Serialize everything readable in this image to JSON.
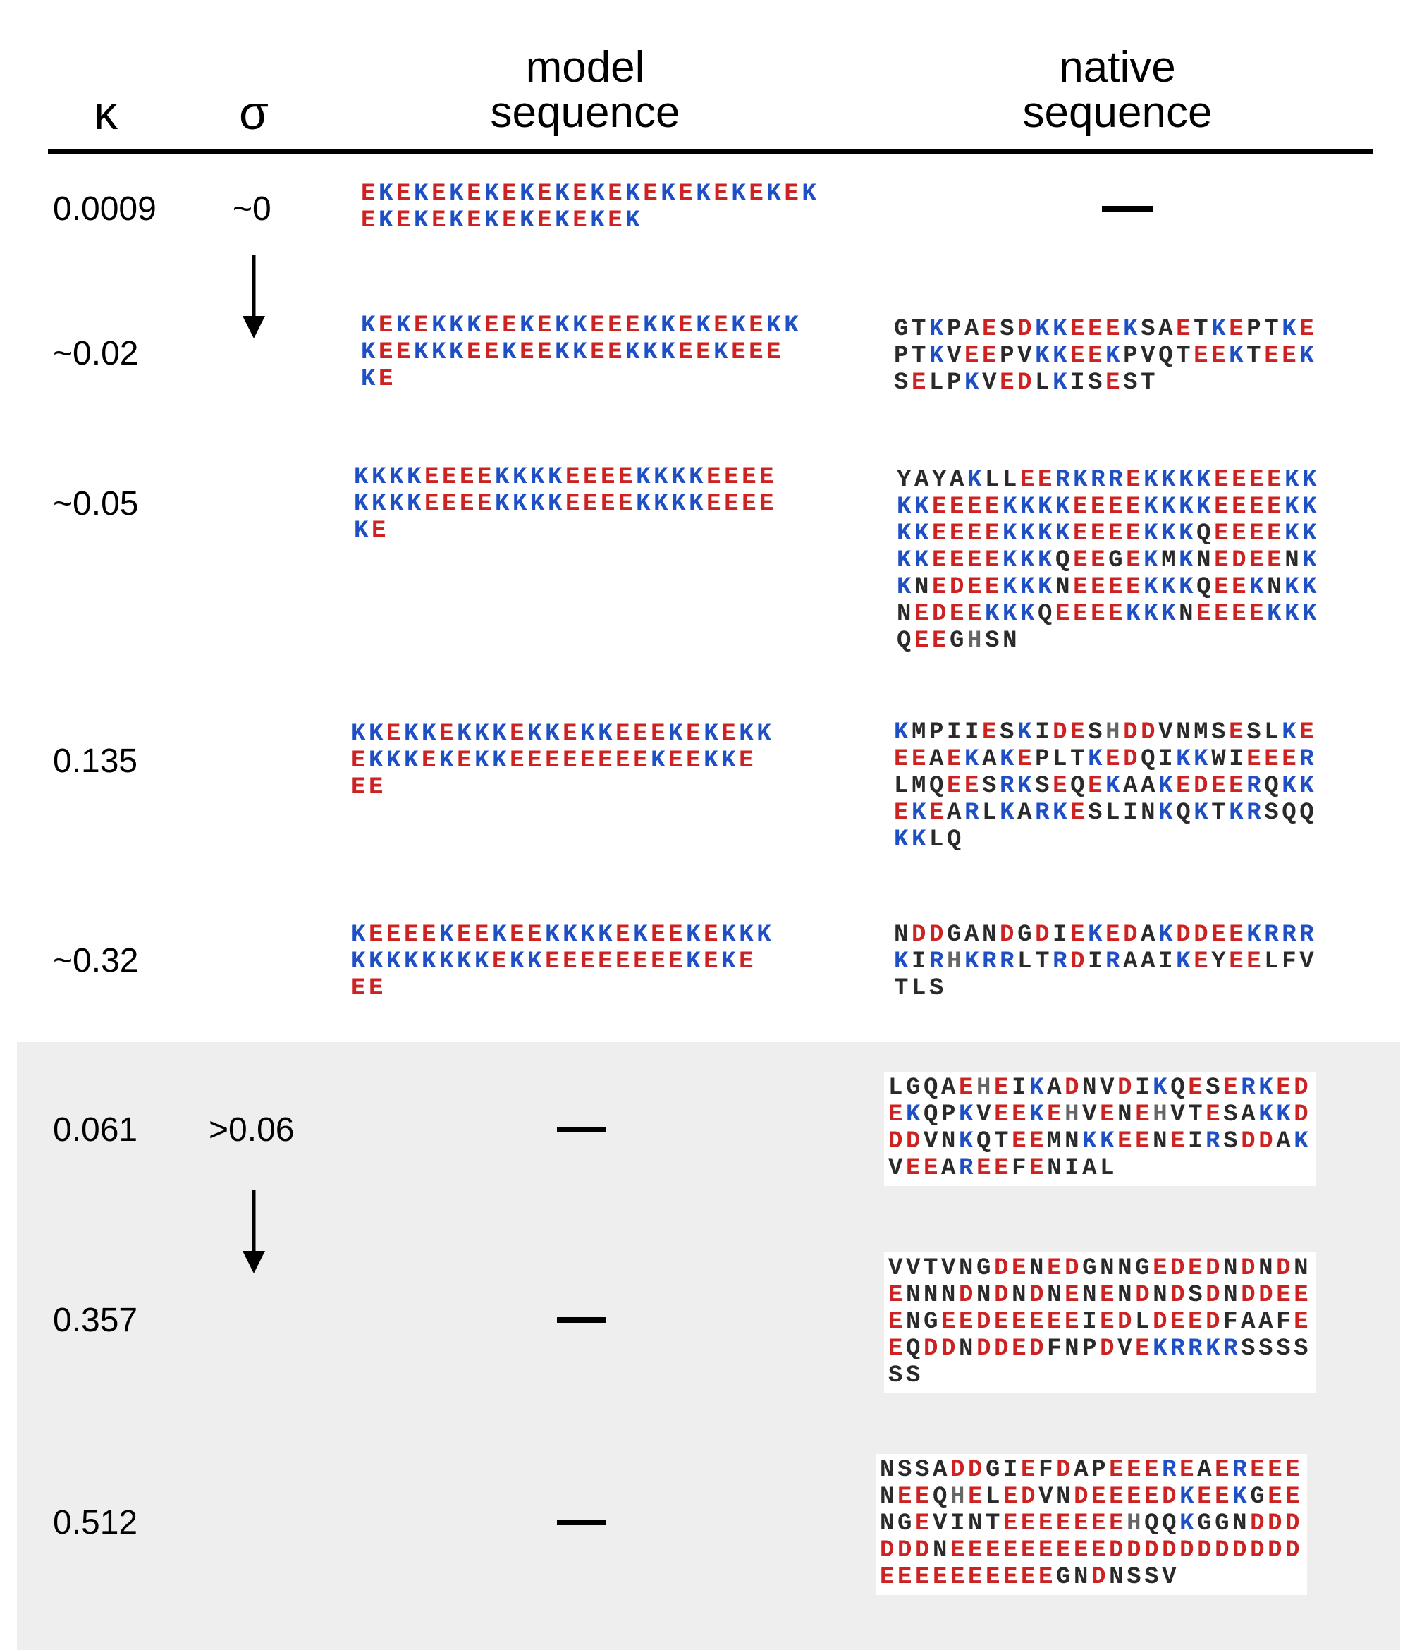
{
  "headers": {
    "kappa": "κ",
    "sigma": "σ",
    "model_line1": "model",
    "model_line2": "sequence",
    "native_line1": "native",
    "native_line2": "sequence"
  },
  "colors": {
    "acidic": "#cc2222",
    "basic": "#1f4fc4",
    "neutral": "#2a2a2a",
    "histidine": "#666666",
    "shaded_background": "#eeeeee"
  },
  "rows": [
    {
      "kappa": "0.0009",
      "sigma": "~0",
      "model": [
        "EKEKEKEKEKEKEKEKEKEKEKEKEK",
        "EKEKEKEKEKEKEKEK"
      ],
      "native": null
    },
    {
      "kappa": "~0.02",
      "sigma": "",
      "model": [
        "KEKEKKKEEKEKKEEEKKEKEKEKK",
        "KEEKKKEEKEEKKEEKKKEEKEEE",
        "KE"
      ],
      "native": [
        "GTKPAESDKKEEEKSAETKEPTKE",
        "PTKVEEPVKKEEKPVQTEEKTEEK",
        "SELPKVEDLKISEST"
      ]
    },
    {
      "kappa": "~0.05",
      "sigma": "",
      "model": [
        "KKKKEEEEKKKKEEEEKKKKEEEE",
        "KKKKEEEEKKKKEEEEKKKKEEEE",
        "KE"
      ],
      "native": [
        "YAYAKLLEERKRREKKKKEEEEKK",
        "KKEEEEKKKKEEEEKKKKEEEEKK",
        "KKEEEEKKKKEEEEKKKQEEEEKK",
        "KKEEEEKKKQEEGEKMKNEDEENK",
        "KNEDEEKKKNEEEEKKKQEEKNKK",
        "NEDEEKKKQEEEEKKKNEEEEKKK",
        "QEEGHSN"
      ]
    },
    {
      "kappa": "0.135",
      "sigma": "",
      "model": [
        "KKEKKEKKKEKKEKKEEEKEKEKK",
        "EKKKEKEKKEEEEEEEEKEEKKE",
        "EE"
      ],
      "native": [
        "KMPIIESKIDESHDDVNMSESLKE",
        "EEAEKAKEPLTKEDQIKKWIEEER",
        "LMQEESRKSEQEKAAKEDEERQKK",
        "EKEARLKARKESLINKQKTKRSQQ",
        "KKLQ"
      ]
    },
    {
      "kappa": "~0.32",
      "sigma": "",
      "model": [
        "KEEEEKEEKEEKKKKEKEEKEKKK",
        "KKKKKKKKEKKEEEEEEEEKEKE",
        "EE"
      ],
      "native": [
        "NDDGANDGDIEKEDAKDDEEKRRR",
        "KIRHKRRLTRDIRAAIKEYEELFV",
        "TLS"
      ]
    },
    {
      "kappa": "0.061",
      "sigma": ">0.06",
      "model": null,
      "native": [
        "LGQAEHEIKADNVDIKQESERKED",
        "EKQPKVEEKEHVENEHVTESAKKD",
        "DDVNKQTEEMNKKEENEIRSDDAK",
        "VEEAREEFENIAL"
      ]
    },
    {
      "kappa": "0.357",
      "sigma": "",
      "model": null,
      "native": [
        "VVTVNGDENEDGNNGEDEDNDNDN",
        "ENNNDNDNDNENENDNDSDNDDEE",
        "ENGEEDEEEEEIEDLDEEDFAAFE",
        "EQDDNDDEDFNPDVEKRRKRSSSS",
        "SS"
      ]
    },
    {
      "kappa": "0.512",
      "sigma": "",
      "model": null,
      "native": [
        "NSSADDGIEFDAPEEEREAEREEE",
        "NEEQHELEDVNDEEEEDKEEKGEE",
        "NGEVINTEEEEEEEHQQKGGNDDD",
        "DDDNEEEEEEEEEDDDDDDDDDDD",
        "EEEEEEEEEEGNDNSSV"
      ]
    }
  ]
}
